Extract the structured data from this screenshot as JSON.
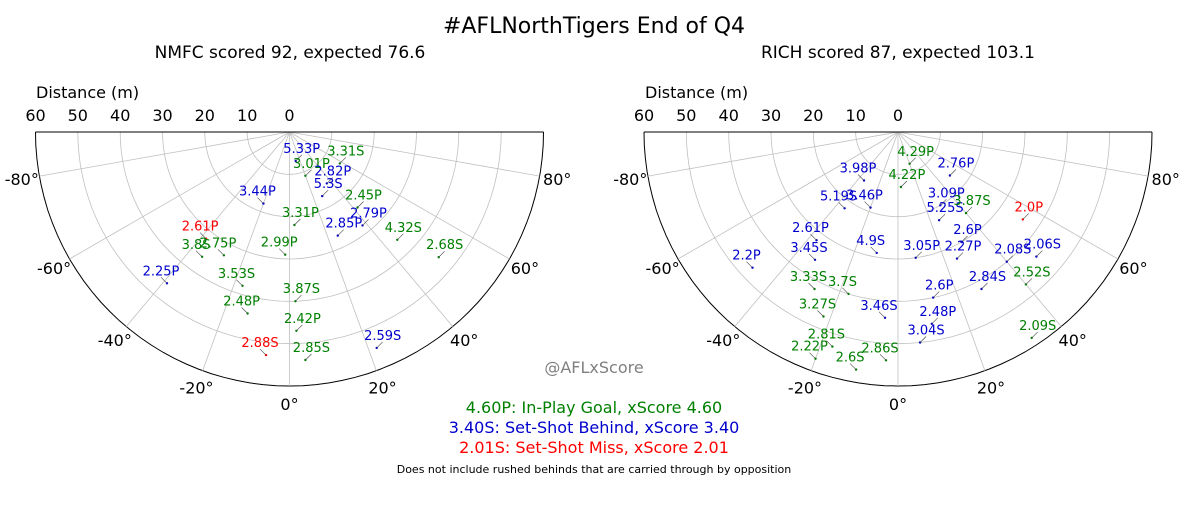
{
  "title": "#AFLNorthTigers End of Q4",
  "watermark": "@AFLxScore",
  "footnote": "Does not include rushed behinds that are carried through by opposition",
  "colors": {
    "goal": "#008000",
    "behind": "#0000cd",
    "miss": "#ff0000",
    "grid": "#c0c0c0",
    "leader": "#444444",
    "watermark": "#808080"
  },
  "legend": [
    {
      "text": "4.60P: In-Play Goal, xScore 4.60",
      "kind": "goal"
    },
    {
      "text": "3.40S: Set-Shot Behind, xScore 3.40",
      "kind": "behind"
    },
    {
      "text": "2.01S: Set-Shot Miss, xScore 2.01",
      "kind": "miss"
    }
  ],
  "chart_data": [
    {
      "type": "scatter",
      "projection": "polar-half",
      "subtitle": "NMFC scored 92, expected 76.6",
      "r_label": "Distance (m)",
      "r_ticks": [
        "60",
        "50",
        "40",
        "30",
        "20",
        "10",
        "0"
      ],
      "r_lim": [
        0,
        60
      ],
      "theta_ticks": [
        "-80°",
        "-60°",
        "-40°",
        "-20°",
        "0°",
        "20°",
        "40°",
        "60°",
        "80°"
      ],
      "theta_lim": [
        -90,
        90
      ],
      "grid": true,
      "shots": [
        {
          "label": "5.33P",
          "kind": "behind",
          "angle": 12,
          "distance": 7
        },
        {
          "label": "3.31S",
          "kind": "goal",
          "angle": 58,
          "distance": 14
        },
        {
          "label": "3.01P",
          "kind": "goal",
          "angle": 20,
          "distance": 11
        },
        {
          "label": "2.82P",
          "kind": "behind",
          "angle": 36,
          "distance": 15
        },
        {
          "label": "3.44P",
          "kind": "behind",
          "angle": -20,
          "distance": 18
        },
        {
          "label": "5.3S",
          "kind": "behind",
          "angle": 27,
          "distance": 17
        },
        {
          "label": "3.31P",
          "kind": "goal",
          "angle": 3,
          "distance": 22
        },
        {
          "label": "2.45P",
          "kind": "goal",
          "angle": 42,
          "distance": 24
        },
        {
          "label": "2.85P",
          "kind": "behind",
          "angle": 25,
          "distance": 27
        },
        {
          "label": "2.79P",
          "kind": "behind",
          "angle": 38,
          "distance": 28
        },
        {
          "label": "2.61P",
          "kind": "miss",
          "angle": -38,
          "distance": 32
        },
        {
          "label": "2.99P",
          "kind": "goal",
          "angle": -2,
          "distance": 29
        },
        {
          "label": "4.32S",
          "kind": "goal",
          "angle": 45,
          "distance": 36
        },
        {
          "label": "2.75P",
          "kind": "goal",
          "angle": -28,
          "distance": 33
        },
        {
          "label": "3.8S",
          "kind": "goal",
          "angle": -35,
          "distance": 36
        },
        {
          "label": "2.68S",
          "kind": "goal",
          "angle": 50,
          "distance": 46
        },
        {
          "label": "2.25P",
          "kind": "behind",
          "angle": -39,
          "distance": 46
        },
        {
          "label": "3.53S",
          "kind": "goal",
          "angle": -17,
          "distance": 38
        },
        {
          "label": "3.87S",
          "kind": "goal",
          "angle": 2,
          "distance": 40
        },
        {
          "label": "2.48P",
          "kind": "goal",
          "angle": -13,
          "distance": 44
        },
        {
          "label": "2.42P",
          "kind": "goal",
          "angle": 2,
          "distance": 47
        },
        {
          "label": "2.59S",
          "kind": "behind",
          "angle": 22,
          "distance": 55
        },
        {
          "label": "2.88S",
          "kind": "miss",
          "angle": -6,
          "distance": 53
        },
        {
          "label": "2.85S",
          "kind": "goal",
          "angle": 4,
          "distance": 54
        }
      ]
    },
    {
      "type": "scatter",
      "projection": "polar-half",
      "subtitle": "RICH scored 87, expected 103.1",
      "r_label": "Distance (m)",
      "r_ticks": [
        "60",
        "50",
        "40",
        "30",
        "20",
        "10",
        "0"
      ],
      "r_lim": [
        0,
        60
      ],
      "theta_ticks": [
        "-80°",
        "-60°",
        "-40°",
        "-20°",
        "0°",
        "20°",
        "40°",
        "60°",
        "80°"
      ],
      "theta_lim": [
        -90,
        90
      ],
      "grid": true,
      "shots": [
        {
          "label": "3.98P",
          "kind": "behind",
          "angle": -35,
          "distance": 14
        },
        {
          "label": "4.29P",
          "kind": "goal",
          "angle": 20,
          "distance": 8
        },
        {
          "label": "2.76P",
          "kind": "behind",
          "angle": 50,
          "distance": 16
        },
        {
          "label": "4.22P",
          "kind": "goal",
          "angle": 3,
          "distance": 13
        },
        {
          "label": "5.19S",
          "kind": "behind",
          "angle": -35,
          "distance": 22
        },
        {
          "label": "3.46P",
          "kind": "behind",
          "angle": -20,
          "distance": 19
        },
        {
          "label": "3.09P",
          "kind": "behind",
          "angle": 30,
          "distance": 20
        },
        {
          "label": "2.0P",
          "kind": "miss",
          "angle": 55,
          "distance": 36
        },
        {
          "label": "5.25S",
          "kind": "behind",
          "angle": 25,
          "distance": 23
        },
        {
          "label": "3.87S",
          "kind": "goal",
          "angle": 40,
          "distance": 25
        },
        {
          "label": "2.6P",
          "kind": "behind",
          "angle": 30,
          "distance": 30
        },
        {
          "label": "2.61P",
          "kind": "behind",
          "angle": -37,
          "distance": 32
        },
        {
          "label": "4.9S",
          "kind": "behind",
          "angle": -10,
          "distance": 29
        },
        {
          "label": "3.05P",
          "kind": "behind",
          "angle": 8,
          "distance": 30
        },
        {
          "label": "2.27P",
          "kind": "behind",
          "angle": 25,
          "distance": 33
        },
        {
          "label": "2.06S",
          "kind": "behind",
          "angle": 48,
          "distance": 44
        },
        {
          "label": "3.45S",
          "kind": "behind",
          "angle": -33,
          "distance": 36
        },
        {
          "label": "2.08S",
          "kind": "behind",
          "angle": 40,
          "distance": 40
        },
        {
          "label": "2.6P",
          "kind": "behind",
          "angle": 12,
          "distance": 40
        },
        {
          "label": "2.84S",
          "kind": "behind",
          "angle": 28,
          "distance": 42
        },
        {
          "label": "2.52S",
          "kind": "goal",
          "angle": 40,
          "distance": 47
        },
        {
          "label": "2.2P",
          "kind": "behind",
          "angle": -47,
          "distance": 47
        },
        {
          "label": "3.33S",
          "kind": "goal",
          "angle": -28,
          "distance": 42
        },
        {
          "label": "3.7S",
          "kind": "goal",
          "angle": -17,
          "distance": 40
        },
        {
          "label": "3.46S",
          "kind": "behind",
          "angle": -4,
          "distance": 44
        },
        {
          "label": "2.48P",
          "kind": "behind",
          "angle": 10,
          "distance": 46
        },
        {
          "label": "3.27S",
          "kind": "goal",
          "angle": -22,
          "distance": 47
        },
        {
          "label": "3.04S",
          "kind": "behind",
          "angle": 6,
          "distance": 50
        },
        {
          "label": "2.09S",
          "kind": "goal",
          "angle": 33,
          "distance": 58
        },
        {
          "label": "2.81S",
          "kind": "goal",
          "angle": -17,
          "distance": 53
        },
        {
          "label": "2.86S",
          "kind": "goal",
          "angle": -3,
          "distance": 54
        },
        {
          "label": "2.22P",
          "kind": "goal",
          "angle": -20,
          "distance": 57
        },
        {
          "label": "2.6S",
          "kind": "goal",
          "angle": -10,
          "distance": 57
        }
      ]
    }
  ]
}
